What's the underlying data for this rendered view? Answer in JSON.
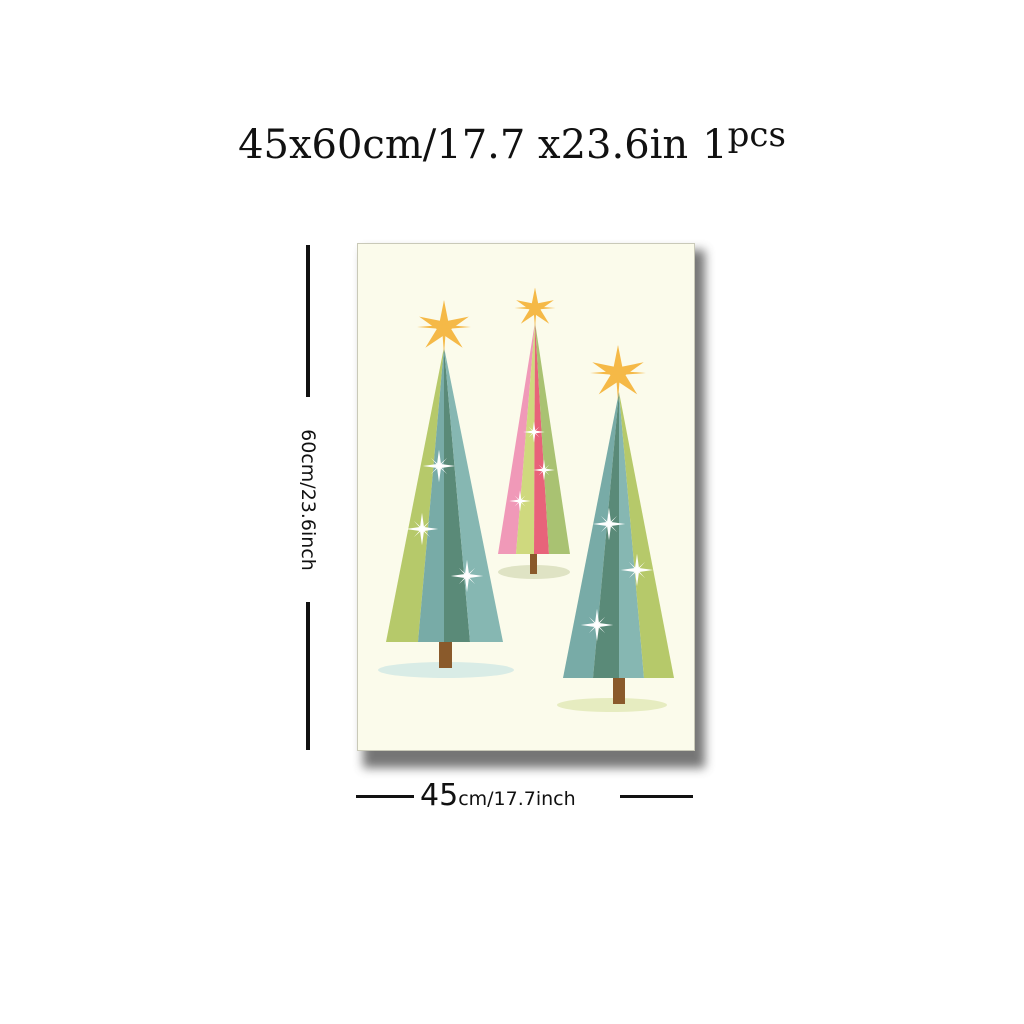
{
  "title": {
    "size": "45x60cm/17.7 x23.6in",
    "qty": "1",
    "unit": "pcs"
  },
  "height_label": "60cm/23.6inch",
  "width_label": {
    "number": "45",
    "rest": "cm/17.7inch"
  },
  "colors": {
    "canvas_bg": "#fbfbeb",
    "tree_lime": "#b6c96a",
    "tree_teal": "#78aba7",
    "tree_dark": "#5a8a78",
    "tree_pink": "#f099b8",
    "tree_red": "#e8637a",
    "star": "#f5b947",
    "trunk": "#8a5a2b"
  }
}
